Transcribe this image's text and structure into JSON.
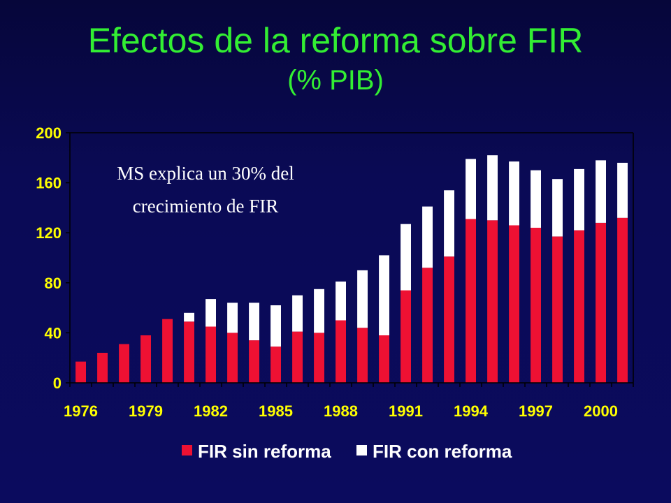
{
  "slide": {
    "title": "Efectos de la reforma sobre FIR",
    "subtitle": "(% PIB)"
  },
  "chart_data": {
    "type": "bar",
    "stacked": true,
    "categories": [
      "1976",
      "1977",
      "1978",
      "1979",
      "1980",
      "1981",
      "1982",
      "1983",
      "1984",
      "1985",
      "1986",
      "1987",
      "1988",
      "1989",
      "1990",
      "1991",
      "1992",
      "1993",
      "1994",
      "1995",
      "1996",
      "1997",
      "1998",
      "1999",
      "2000",
      "2001"
    ],
    "x_tick_labels": [
      "1976",
      "1979",
      "1982",
      "1985",
      "1988",
      "1991",
      "1994",
      "1997",
      "2000"
    ],
    "y_tick_labels": [
      "0",
      "40",
      "80",
      "120",
      "160",
      "200"
    ],
    "ylim": [
      0,
      200
    ],
    "title": "",
    "xlabel": "",
    "ylabel": "",
    "grid": false,
    "legend_position": "bottom",
    "series": [
      {
        "name": "FIR sin reforma",
        "color": "#ee1133",
        "values": [
          17,
          24,
          31,
          38,
          51,
          49,
          45,
          40,
          34,
          29,
          41,
          40,
          50,
          44,
          38,
          74,
          92,
          101,
          131,
          130,
          126,
          124,
          117,
          122,
          128,
          132
        ]
      },
      {
        "name": "FIR con reforma",
        "color": "#ffffff",
        "values": [
          0,
          0,
          0,
          0,
          0,
          7,
          22,
          24,
          30,
          33,
          29,
          35,
          31,
          46,
          64,
          53,
          49,
          53,
          48,
          52,
          51,
          46,
          46,
          49,
          50,
          44
        ]
      }
    ],
    "annotation": {
      "line1": "MS explica un 30% del",
      "line2": "crecimiento de FIR"
    }
  }
}
